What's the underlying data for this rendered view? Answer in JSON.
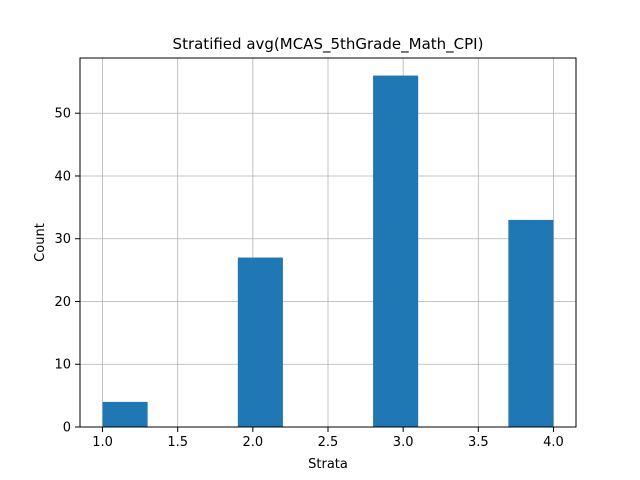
{
  "chart_data": {
    "type": "bar",
    "title": "Stratified avg(MCAS_5thGrade_Math_CPI)",
    "xlabel": "Strata",
    "ylabel": "Count",
    "bins": [
      {
        "x0": 1.0,
        "x1": 1.3,
        "value": 4
      },
      {
        "x0": 1.3,
        "x1": 1.6,
        "value": 0
      },
      {
        "x0": 1.6,
        "x1": 1.9,
        "value": 0
      },
      {
        "x0": 1.9,
        "x1": 2.2,
        "value": 27
      },
      {
        "x0": 2.2,
        "x1": 2.5,
        "value": 0
      },
      {
        "x0": 2.5,
        "x1": 2.8,
        "value": 0
      },
      {
        "x0": 2.8,
        "x1": 3.1,
        "value": 56
      },
      {
        "x0": 3.1,
        "x1": 3.4,
        "value": 0
      },
      {
        "x0": 3.4,
        "x1": 3.7,
        "value": 0
      },
      {
        "x0": 3.7,
        "x1": 4.0,
        "value": 33
      }
    ],
    "xlim": [
      0.85,
      4.15
    ],
    "ylim": [
      0,
      58.8
    ],
    "xticks": [
      1.0,
      1.5,
      2.0,
      2.5,
      3.0,
      3.5,
      4.0
    ],
    "xtick_labels": [
      "1.0",
      "1.5",
      "2.0",
      "2.5",
      "3.0",
      "3.5",
      "4.0"
    ],
    "yticks": [
      0,
      10,
      20,
      30,
      40,
      50
    ],
    "ytick_labels": [
      "0",
      "10",
      "20",
      "30",
      "40",
      "50"
    ],
    "grid": true,
    "bar_color": "#1f77b4",
    "grid_color": "#b0b0b0"
  }
}
